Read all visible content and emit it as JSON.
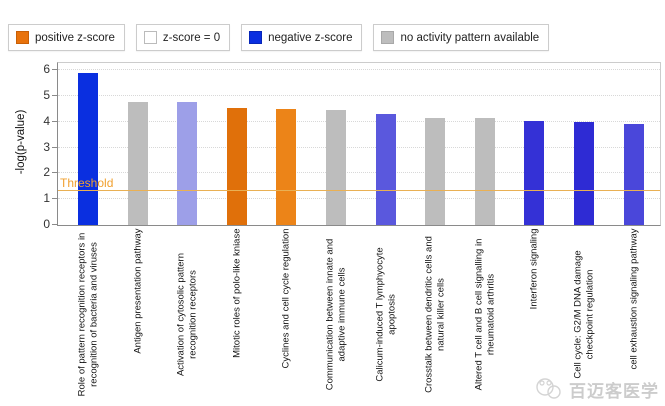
{
  "legend": {
    "items": [
      {
        "name": "positive-z-score",
        "label": "positive z-score",
        "color": "#e8720c",
        "border": "#c85f06"
      },
      {
        "name": "z-score-zero",
        "label": "z-score = 0",
        "color": "#ffffff",
        "border": "#bbbbbb"
      },
      {
        "name": "negative-z-score",
        "label": "negative z-score",
        "color": "#0a2fe0",
        "border": "#0726b8"
      },
      {
        "name": "no-activity",
        "label": "no activity pattern available",
        "color": "#bdbdbd",
        "border": "#a8a8a8"
      }
    ]
  },
  "watermark": {
    "text": "百迈客医学",
    "logo": "panda-logo-icon"
  },
  "chart_data": {
    "type": "bar",
    "title": "",
    "xlabel": "",
    "ylabel": "-log(p-value)",
    "ylim": [
      0,
      6.28
    ],
    "yticks": [
      0,
      1,
      2,
      3,
      4,
      5,
      6
    ],
    "grid": "horizontal dotted at integers",
    "legend_position": "top",
    "threshold": {
      "value": 1.3,
      "label": "Threshold",
      "line_color": "#e9b054",
      "label_color": "#f0a030"
    },
    "categories": [
      "Role of pattern recognition receptors in recognition of bacteria and viruses",
      "Antigen presentation pathway",
      "Activation of cytosolic pattern recognition receptors",
      "Mitotic roles of polo-like kniase",
      "Cyclines and cell cycle regulation",
      "Communication between innate and adaptive immune cells",
      "Calicum-induced T lymphyocyte apoptosis",
      "Crosstalk between dendritic cells and natural killer cells",
      "Altered T cell and B cell signalling in rheumatoid arthritis",
      "Interferon signaling",
      "Cell cycle: G2/M DNA damage checkpoint regulation",
      "cell exhaustion signaling pathway"
    ],
    "values": [
      5.9,
      4.75,
      4.75,
      4.55,
      4.5,
      4.45,
      4.3,
      4.15,
      4.15,
      4.05,
      4.0,
      3.9
    ],
    "bar_categories": [
      "negative",
      "no-activity",
      "negative",
      "positive",
      "positive",
      "no-activity",
      "negative",
      "no-activity",
      "no-activity",
      "negative",
      "negative",
      "negative"
    ],
    "bar_colors": [
      "#0a2fe0",
      "#bdbdbd",
      "#9d9fe8",
      "#e0700a",
      "#ec8418",
      "#bdbdbd",
      "#5a58dd",
      "#bdbdbd",
      "#bdbdbd",
      "#3431d6",
      "#2e2bd4",
      "#4a47da"
    ]
  }
}
